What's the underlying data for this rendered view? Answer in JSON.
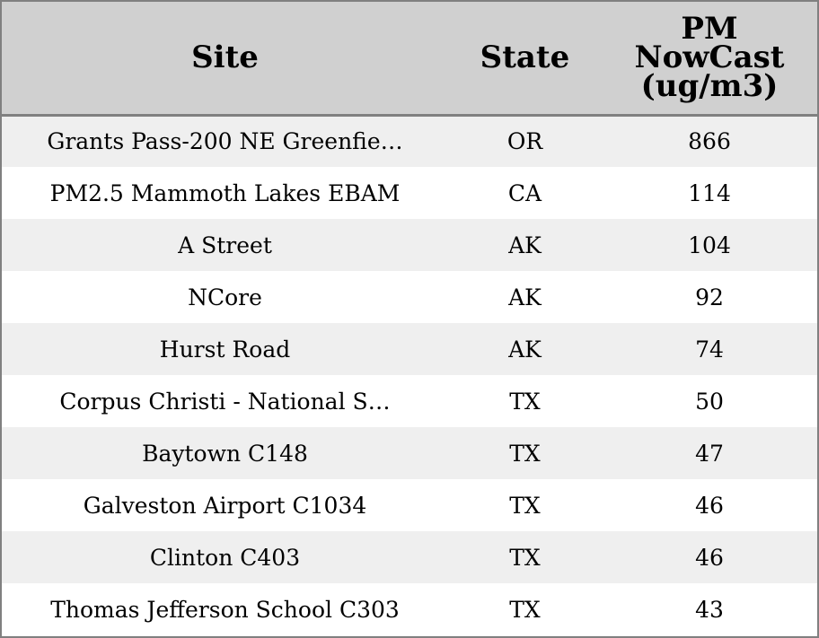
{
  "chart_data": {
    "type": "table",
    "columns": [
      "Site",
      "State",
      "PM NowCast (ug/m3)"
    ],
    "header_lines": [
      [
        "Site"
      ],
      [
        "State"
      ],
      [
        "PM",
        "NowCast",
        "(ug/m3)"
      ]
    ],
    "rows": [
      {
        "site": "Grants Pass-200 NE Greenfie…",
        "state": "OR",
        "pm": "866"
      },
      {
        "site": "PM2.5 Mammoth Lakes EBAM",
        "state": "CA",
        "pm": "114"
      },
      {
        "site": "A Street",
        "state": "AK",
        "pm": "104"
      },
      {
        "site": "NCore",
        "state": "AK",
        "pm": "92"
      },
      {
        "site": "Hurst Road",
        "state": "AK",
        "pm": "74"
      },
      {
        "site": "Corpus Christi - National S…",
        "state": "TX",
        "pm": "50"
      },
      {
        "site": "Baytown C148",
        "state": "TX",
        "pm": "47"
      },
      {
        "site": "Galveston Airport C1034",
        "state": "TX",
        "pm": "46"
      },
      {
        "site": "Clinton C403",
        "state": "TX",
        "pm": "46"
      },
      {
        "site": "Thomas Jefferson School C303",
        "state": "TX",
        "pm": "43"
      }
    ]
  },
  "colors": {
    "header_background": "#d0d0d0",
    "row_alt_background": "#efefef",
    "row_background": "#ffffff",
    "border": "#808080",
    "text": "#000000"
  }
}
